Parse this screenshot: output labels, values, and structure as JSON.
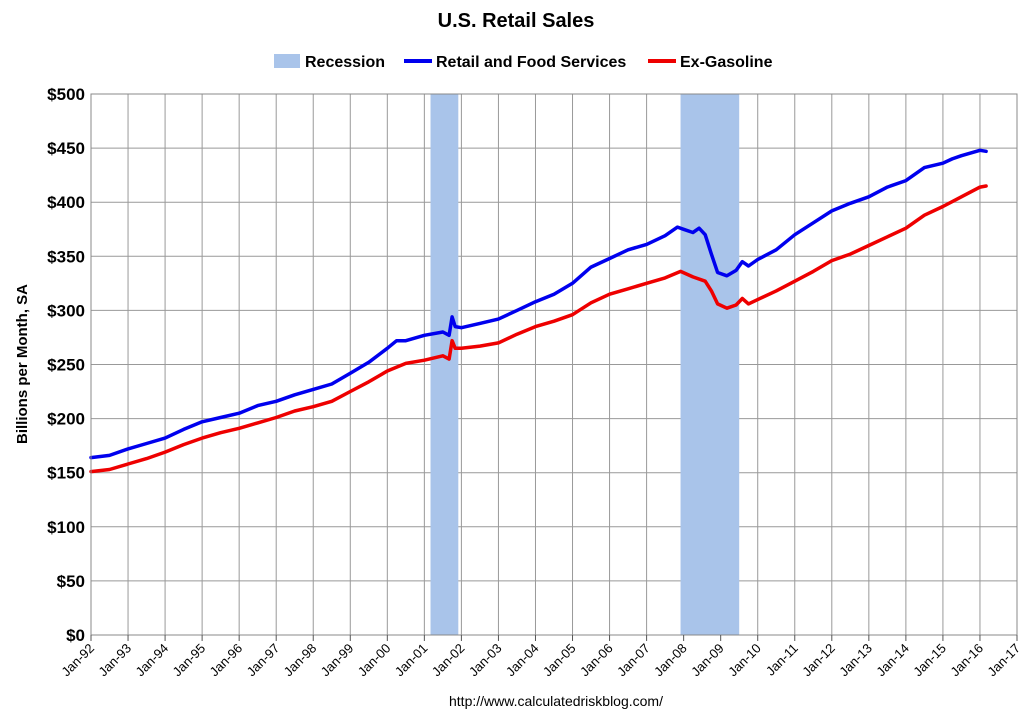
{
  "chart_data": {
    "type": "line",
    "title": "U.S. Retail Sales",
    "ylabel": "Billions per Month, SA",
    "xlabel": "",
    "source": "http://www.calculatedriskblog.com/",
    "ylim": [
      0,
      500
    ],
    "xlim": [
      "Jan-92",
      "Jan-17"
    ],
    "grid": true,
    "legend_position": "top",
    "yticks": [
      "$0",
      "$50",
      "$100",
      "$150",
      "$200",
      "$250",
      "$300",
      "$350",
      "$400",
      "$450",
      "$500"
    ],
    "xticks": [
      "Jan-92",
      "Jan-93",
      "Jan-94",
      "Jan-95",
      "Jan-96",
      "Jan-97",
      "Jan-98",
      "Jan-99",
      "Jan-00",
      "Jan-01",
      "Jan-02",
      "Jan-03",
      "Jan-04",
      "Jan-05",
      "Jan-06",
      "Jan-07",
      "Jan-08",
      "Jan-09",
      "Jan-10",
      "Jan-11",
      "Jan-12",
      "Jan-13",
      "Jan-14",
      "Jan-15",
      "Jan-16",
      "Jan-17"
    ],
    "recessions": [
      {
        "name": "Recession",
        "start": "2001-03",
        "end": "2001-11",
        "color": "#a9c4ea"
      },
      {
        "name": "Recession",
        "start": "2007-12",
        "end": "2009-06",
        "color": "#a9c4ea"
      }
    ],
    "series": [
      {
        "name": "Retail and Food Services",
        "color": "#0000ee",
        "points": [
          [
            "1992-01",
            164
          ],
          [
            "1992-07",
            166
          ],
          [
            "1993-01",
            172
          ],
          [
            "1993-07",
            177
          ],
          [
            "1994-01",
            182
          ],
          [
            "1994-07",
            190
          ],
          [
            "1995-01",
            197
          ],
          [
            "1995-07",
            201
          ],
          [
            "1996-01",
            205
          ],
          [
            "1996-07",
            212
          ],
          [
            "1997-01",
            216
          ],
          [
            "1997-07",
            222
          ],
          [
            "1998-01",
            227
          ],
          [
            "1998-07",
            232
          ],
          [
            "1999-01",
            242
          ],
          [
            "1999-07",
            252
          ],
          [
            "2000-01",
            265
          ],
          [
            "2000-04",
            272
          ],
          [
            "2000-07",
            272
          ],
          [
            "2001-01",
            277
          ],
          [
            "2001-07",
            280
          ],
          [
            "2001-09",
            277
          ],
          [
            "2001-10",
            294
          ],
          [
            "2001-11",
            285
          ],
          [
            "2002-01",
            284
          ],
          [
            "2002-07",
            288
          ],
          [
            "2003-01",
            292
          ],
          [
            "2003-07",
            300
          ],
          [
            "2004-01",
            308
          ],
          [
            "2004-07",
            315
          ],
          [
            "2005-01",
            325
          ],
          [
            "2005-07",
            340
          ],
          [
            "2006-01",
            348
          ],
          [
            "2006-07",
            356
          ],
          [
            "2007-01",
            361
          ],
          [
            "2007-07",
            369
          ],
          [
            "2007-11",
            377
          ],
          [
            "2008-01",
            375
          ],
          [
            "2008-04",
            372
          ],
          [
            "2008-06",
            376
          ],
          [
            "2008-08",
            370
          ],
          [
            "2008-10",
            352
          ],
          [
            "2008-12",
            335
          ],
          [
            "2009-03",
            332
          ],
          [
            "2009-06",
            337
          ],
          [
            "2009-08",
            345
          ],
          [
            "2009-10",
            341
          ],
          [
            "2010-01",
            347
          ],
          [
            "2010-07",
            356
          ],
          [
            "2011-01",
            370
          ],
          [
            "2011-07",
            381
          ],
          [
            "2012-01",
            392
          ],
          [
            "2012-07",
            399
          ],
          [
            "2013-01",
            405
          ],
          [
            "2013-07",
            414
          ],
          [
            "2014-01",
            420
          ],
          [
            "2014-07",
            432
          ],
          [
            "2015-01",
            436
          ],
          [
            "2015-04",
            440
          ],
          [
            "2015-07",
            443
          ],
          [
            "2016-01",
            448
          ],
          [
            "2016-03",
            447
          ]
        ]
      },
      {
        "name": "Ex-Gasoline",
        "color": "#ee0000",
        "points": [
          [
            "1992-01",
            151
          ],
          [
            "1992-07",
            153
          ],
          [
            "1993-01",
            158
          ],
          [
            "1993-07",
            163
          ],
          [
            "1994-01",
            169
          ],
          [
            "1994-07",
            176
          ],
          [
            "1995-01",
            182
          ],
          [
            "1995-07",
            187
          ],
          [
            "1996-01",
            191
          ],
          [
            "1996-07",
            196
          ],
          [
            "1997-01",
            201
          ],
          [
            "1997-07",
            207
          ],
          [
            "1998-01",
            211
          ],
          [
            "1998-07",
            216
          ],
          [
            "1999-01",
            225
          ],
          [
            "1999-07",
            234
          ],
          [
            "2000-01",
            244
          ],
          [
            "2000-07",
            251
          ],
          [
            "2001-01",
            254
          ],
          [
            "2001-07",
            258
          ],
          [
            "2001-09",
            255
          ],
          [
            "2001-10",
            272
          ],
          [
            "2001-11",
            265
          ],
          [
            "2002-01",
            265
          ],
          [
            "2002-07",
            267
          ],
          [
            "2003-01",
            270
          ],
          [
            "2003-07",
            278
          ],
          [
            "2004-01",
            285
          ],
          [
            "2004-07",
            290
          ],
          [
            "2005-01",
            296
          ],
          [
            "2005-07",
            307
          ],
          [
            "2006-01",
            315
          ],
          [
            "2006-07",
            320
          ],
          [
            "2007-01",
            325
          ],
          [
            "2007-07",
            330
          ],
          [
            "2007-12",
            336
          ],
          [
            "2008-04",
            331
          ],
          [
            "2008-08",
            327
          ],
          [
            "2008-10",
            318
          ],
          [
            "2008-12",
            306
          ],
          [
            "2009-03",
            302
          ],
          [
            "2009-06",
            305
          ],
          [
            "2009-08",
            311
          ],
          [
            "2009-10",
            306
          ],
          [
            "2010-01",
            310
          ],
          [
            "2010-07",
            318
          ],
          [
            "2011-01",
            327
          ],
          [
            "2011-07",
            336
          ],
          [
            "2012-01",
            346
          ],
          [
            "2012-07",
            352
          ],
          [
            "2013-01",
            360
          ],
          [
            "2013-07",
            368
          ],
          [
            "2014-01",
            376
          ],
          [
            "2014-07",
            388
          ],
          [
            "2015-01",
            396
          ],
          [
            "2015-07",
            405
          ],
          [
            "2016-01",
            414
          ],
          [
            "2016-03",
            415
          ]
        ]
      }
    ]
  }
}
